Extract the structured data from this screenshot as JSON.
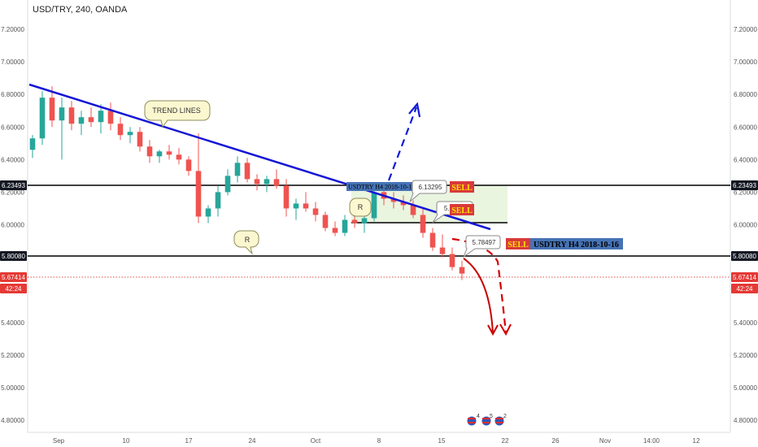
{
  "header": {
    "title": "USD/TRY, 240, OANDA"
  },
  "chart_data": {
    "type": "candlestick",
    "symbol": "USD/TRY",
    "interval": "240",
    "source": "OANDA",
    "ylim": [
      4.7,
      7.3
    ],
    "y_ticks": [
      "7.20000",
      "7.00000",
      "6.80000",
      "6.60000",
      "6.40000",
      "6.20000",
      "6.00000",
      "5.80000",
      "5.60000",
      "5.40000",
      "5.20000",
      "5.00000",
      "4.80000"
    ],
    "x_ticks": [
      "Sep",
      "10",
      "17",
      "24",
      "Oct",
      "8",
      "15",
      "22",
      "26",
      "Nov",
      "14:00",
      "12"
    ],
    "candles": [
      {
        "o": 6.46,
        "h": 6.55,
        "l": 6.41,
        "c": 6.53
      },
      {
        "o": 6.53,
        "h": 6.82,
        "l": 6.49,
        "c": 6.78
      },
      {
        "o": 6.78,
        "h": 6.85,
        "l": 6.6,
        "c": 6.64
      },
      {
        "o": 6.64,
        "h": 6.78,
        "l": 6.4,
        "c": 6.72
      },
      {
        "o": 6.72,
        "h": 6.76,
        "l": 6.58,
        "c": 6.62
      },
      {
        "o": 6.62,
        "h": 6.7,
        "l": 6.55,
        "c": 6.66
      },
      {
        "o": 6.66,
        "h": 6.72,
        "l": 6.6,
        "c": 6.63
      },
      {
        "o": 6.63,
        "h": 6.74,
        "l": 6.56,
        "c": 6.7
      },
      {
        "o": 6.7,
        "h": 6.75,
        "l": 6.58,
        "c": 6.62
      },
      {
        "o": 6.62,
        "h": 6.66,
        "l": 6.52,
        "c": 6.55
      },
      {
        "o": 6.55,
        "h": 6.6,
        "l": 6.5,
        "c": 6.57
      },
      {
        "o": 6.57,
        "h": 6.6,
        "l": 6.45,
        "c": 6.48
      },
      {
        "o": 6.48,
        "h": 6.52,
        "l": 6.38,
        "c": 6.42
      },
      {
        "o": 6.42,
        "h": 6.46,
        "l": 6.38,
        "c": 6.45
      },
      {
        "o": 6.45,
        "h": 6.49,
        "l": 6.4,
        "c": 6.43
      },
      {
        "o": 6.43,
        "h": 6.47,
        "l": 6.37,
        "c": 6.4
      },
      {
        "o": 6.4,
        "h": 6.42,
        "l": 6.3,
        "c": 6.33
      },
      {
        "o": 6.33,
        "h": 6.56,
        "l": 6.01,
        "c": 6.05
      },
      {
        "o": 6.05,
        "h": 6.12,
        "l": 6.01,
        "c": 6.1
      },
      {
        "o": 6.1,
        "h": 6.24,
        "l": 6.05,
        "c": 6.2
      },
      {
        "o": 6.2,
        "h": 6.34,
        "l": 6.18,
        "c": 6.3
      },
      {
        "o": 6.3,
        "h": 6.42,
        "l": 6.26,
        "c": 6.38
      },
      {
        "o": 6.38,
        "h": 6.41,
        "l": 6.26,
        "c": 6.28
      },
      {
        "o": 6.28,
        "h": 6.31,
        "l": 6.21,
        "c": 6.25
      },
      {
        "o": 6.25,
        "h": 6.3,
        "l": 6.2,
        "c": 6.28
      },
      {
        "o": 6.28,
        "h": 6.34,
        "l": 6.22,
        "c": 6.24
      },
      {
        "o": 6.24,
        "h": 6.28,
        "l": 6.05,
        "c": 6.1
      },
      {
        "o": 6.1,
        "h": 6.16,
        "l": 6.03,
        "c": 6.13
      },
      {
        "o": 6.13,
        "h": 6.2,
        "l": 6.08,
        "c": 6.1
      },
      {
        "o": 6.1,
        "h": 6.14,
        "l": 6.02,
        "c": 6.06
      },
      {
        "o": 6.06,
        "h": 6.08,
        "l": 5.96,
        "c": 5.98
      },
      {
        "o": 5.98,
        "h": 6.02,
        "l": 5.93,
        "c": 5.95
      },
      {
        "o": 5.95,
        "h": 6.06,
        "l": 5.93,
        "c": 6.03
      },
      {
        "o": 6.03,
        "h": 6.08,
        "l": 5.98,
        "c": 6.01
      },
      {
        "o": 6.01,
        "h": 6.06,
        "l": 5.95,
        "c": 6.04
      },
      {
        "o": 6.04,
        "h": 6.26,
        "l": 6.02,
        "c": 6.2
      },
      {
        "o": 6.2,
        "h": 6.24,
        "l": 6.12,
        "c": 6.16
      },
      {
        "o": 6.16,
        "h": 6.2,
        "l": 6.1,
        "c": 6.14
      },
      {
        "o": 6.14,
        "h": 6.18,
        "l": 6.09,
        "c": 6.12
      },
      {
        "o": 6.12,
        "h": 6.15,
        "l": 6.04,
        "c": 6.06
      },
      {
        "o": 6.06,
        "h": 6.1,
        "l": 5.92,
        "c": 5.95
      },
      {
        "o": 5.95,
        "h": 5.98,
        "l": 5.84,
        "c": 5.86
      },
      {
        "o": 5.86,
        "h": 5.94,
        "l": 5.8,
        "c": 5.82
      },
      {
        "o": 5.82,
        "h": 5.86,
        "l": 5.72,
        "c": 5.74
      },
      {
        "o": 5.74,
        "h": 5.78,
        "l": 5.66,
        "c": 5.7
      }
    ]
  },
  "y_axis": {
    "left_labels": [
      "7.20000",
      "7.00000",
      "6.80000",
      "6.60000",
      "6.40000",
      "6.20000",
      "6.00000",
      "5.80000",
      "5.60000",
      "5.40000",
      "5.20000",
      "5.00000",
      "4.80000"
    ],
    "right_labels": [
      "7.20000",
      "7.00000",
      "6.80000",
      "6.60000",
      "6.40000",
      "6.20000",
      "6.00000",
      "5.80000",
      "5.60000",
      "5.40000",
      "5.20000",
      "5.00000",
      "4.80000"
    ],
    "badges": [
      {
        "text": "6.23493",
        "kind": "dark"
      },
      {
        "text": "5.80080",
        "kind": "dark"
      },
      {
        "text": "5.67414",
        "kind": "red"
      },
      {
        "text": "42:24",
        "kind": "red"
      }
    ]
  },
  "annotations": {
    "trend_lines": "TREND LINES",
    "r_label_1": "R",
    "r_label_2": "R",
    "sell_label": "SELL",
    "sell_label_2": "SELL",
    "sell_label_3": "SELL",
    "box_title": "USDTRY  H4  2018-10-16",
    "box_title_2": "USDTRY  H4  2018-10-16",
    "price_callouts": [
      "6.13295",
      "5.99611",
      "5.78497"
    ],
    "event_numbers": [
      "4",
      "5",
      "2"
    ]
  },
  "colors": {
    "bull": "#26a69a",
    "bear": "#ef5350",
    "trendline": "#1515d6",
    "projection": "#0e1bd8",
    "down_projection": "#d60000",
    "box_fill": "#e8f5e0",
    "sell_bg": "#d93a3a",
    "sell_text": "#ffe600",
    "label_bg": "#4673b5"
  }
}
